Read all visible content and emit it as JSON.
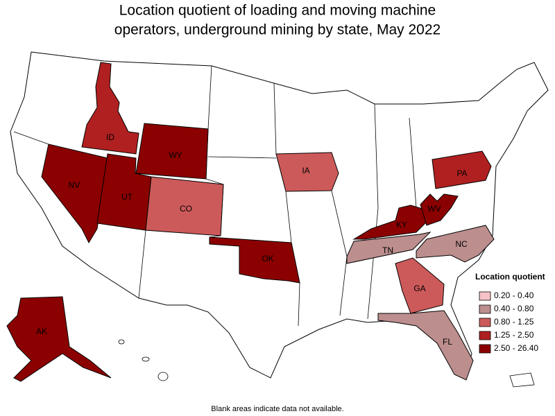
{
  "title": [
    "Location quotient of loading and moving machine",
    "operators, underground mining by state, May 2022"
  ],
  "legend": {
    "title": "Location quotient",
    "items": [
      {
        "label": "0.20 - 0.40",
        "color": "#f6c4c8"
      },
      {
        "label": "0.40 - 0.80",
        "color": "#bc8e8e"
      },
      {
        "label": "0.80 - 1.25",
        "color": "#cd5a5a"
      },
      {
        "label": "1.25 - 2.50",
        "color": "#b02020"
      },
      {
        "label": "2.50 - 26.40",
        "color": "#8b0000"
      }
    ]
  },
  "states": [
    {
      "label": "ID",
      "color": "#b02020"
    },
    {
      "label": "WY",
      "color": "#8b0000"
    },
    {
      "label": "NV",
      "color": "#8b0000"
    },
    {
      "label": "UT",
      "color": "#8b0000"
    },
    {
      "label": "CO",
      "color": "#cd5a5a"
    },
    {
      "label": "OK",
      "color": "#8b0000"
    },
    {
      "label": "IA",
      "color": "#cd5a5a"
    },
    {
      "label": "PA",
      "color": "#b02020"
    },
    {
      "label": "KY",
      "color": "#8b0000"
    },
    {
      "label": "WV",
      "color": "#8b0000"
    },
    {
      "label": "TN",
      "color": "#bc8e8e"
    },
    {
      "label": "NC",
      "color": "#bc8e8e"
    },
    {
      "label": "GA",
      "color": "#cd5a5a"
    },
    {
      "label": "FL",
      "color": "#bc8e8e"
    },
    {
      "label": "AK",
      "color": "#8b0000"
    }
  ],
  "footnote": "Blank areas indicate data not available."
}
